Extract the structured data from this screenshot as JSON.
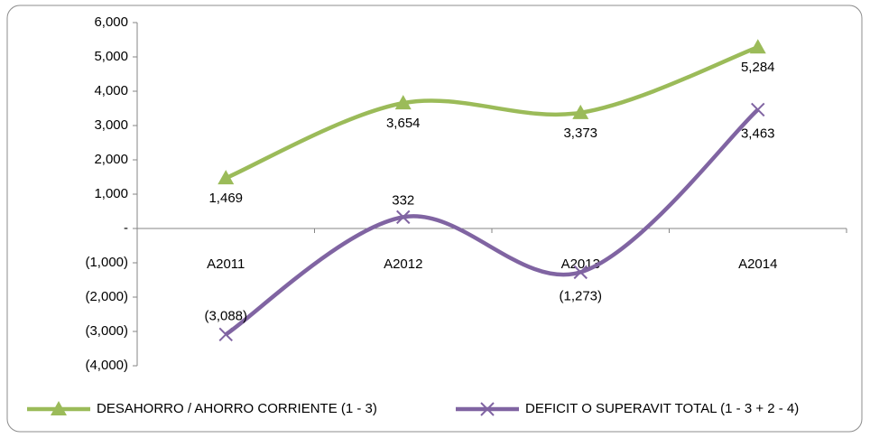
{
  "chart_data": {
    "type": "line",
    "categories": [
      "A2011",
      "A2012",
      "A2013",
      "A2014"
    ],
    "series": [
      {
        "name": "DESAHORRO / AHORRO CORRIENTE (1 - 3)",
        "color": "#9bbb59",
        "marker": "triangle",
        "values": [
          1469,
          3654,
          3373,
          5284
        ],
        "value_labels": [
          "1,469",
          "3,654",
          "3,373",
          "5,284"
        ]
      },
      {
        "name": "DEFICIT O SUPERAVIT TOTAL (1 - 3 + 2 - 4)",
        "color": "#8064a2",
        "marker": "x",
        "values": [
          -3088,
          332,
          -1273,
          3463
        ],
        "value_labels": [
          "(3,088)",
          "332",
          "(1,273)",
          "3,463"
        ]
      }
    ],
    "ylim": [
      -4000,
      6000
    ],
    "yticks": [
      {
        "value": 6000,
        "label": "6,000"
      },
      {
        "value": 5000,
        "label": "5,000"
      },
      {
        "value": 4000,
        "label": "4,000"
      },
      {
        "value": 3000,
        "label": "3,000"
      },
      {
        "value": 2000,
        "label": "2,000"
      },
      {
        "value": 1000,
        "label": "1,000"
      },
      {
        "value": 0,
        "label": "-"
      },
      {
        "value": -1000,
        "label": "(1,000)"
      },
      {
        "value": -2000,
        "label": "(2,000)"
      },
      {
        "value": -3000,
        "label": "(3,000)"
      },
      {
        "value": -4000,
        "label": "(4,000)"
      }
    ],
    "smooth": true,
    "legend": "bottom"
  }
}
